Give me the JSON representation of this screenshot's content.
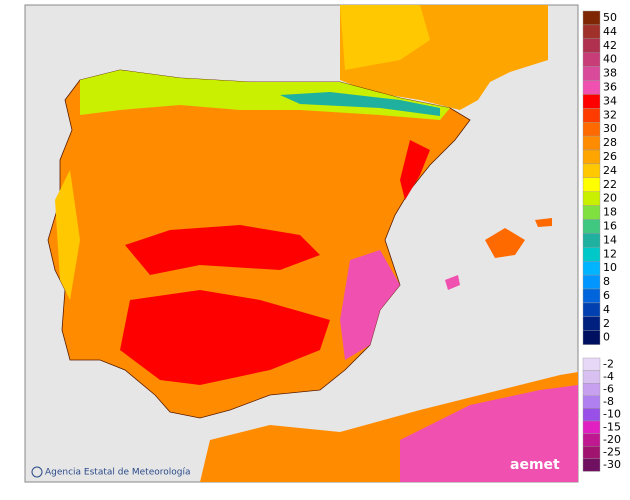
{
  "map": {
    "credit": "Agencia Estatal de Meteorología",
    "logo": "aemet",
    "legend": {
      "upper": [
        {
          "label": "50",
          "color": "#7f2704"
        },
        {
          "label": "44",
          "color": "#a0302a"
        },
        {
          "label": "42",
          "color": "#b03050"
        },
        {
          "label": "40",
          "color": "#c83c78"
        },
        {
          "label": "38",
          "color": "#d94a9a"
        },
        {
          "label": "36",
          "color": "#f050b0"
        },
        {
          "label": "34",
          "color": "#ff0000"
        },
        {
          "label": "32",
          "color": "#ff3c00"
        },
        {
          "label": "30",
          "color": "#ff6a00"
        },
        {
          "label": "28",
          "color": "#ff8c00"
        },
        {
          "label": "26",
          "color": "#ffa500"
        },
        {
          "label": "24",
          "color": "#ffc800"
        },
        {
          "label": "22",
          "color": "#ffff00"
        },
        {
          "label": "20",
          "color": "#c8f000"
        },
        {
          "label": "18",
          "color": "#80e040"
        },
        {
          "label": "16",
          "color": "#40c880"
        },
        {
          "label": "14",
          "color": "#20b0a0"
        },
        {
          "label": "12",
          "color": "#00c8c8"
        },
        {
          "label": "10",
          "color": "#00b4ff"
        },
        {
          "label": "8",
          "color": "#0096ff"
        },
        {
          "label": "6",
          "color": "#0064dc"
        },
        {
          "label": "4",
          "color": "#0040b0"
        },
        {
          "label": "2",
          "color": "#002080"
        },
        {
          "label": "0",
          "color": "#001060"
        }
      ],
      "lower": [
        {
          "label": "-2",
          "color": "#e8d8f8"
        },
        {
          "label": "-4",
          "color": "#d8c0f0"
        },
        {
          "label": "-6",
          "color": "#c8a0f0"
        },
        {
          "label": "-8",
          "color": "#b080f0"
        },
        {
          "label": "-10",
          "color": "#9850e8"
        },
        {
          "label": "-15",
          "color": "#e020c0"
        },
        {
          "label": "-20",
          "color": "#c01890"
        },
        {
          "label": "-25",
          "color": "#a01470"
        },
        {
          "label": "-30",
          "color": "#701060"
        }
      ]
    }
  }
}
